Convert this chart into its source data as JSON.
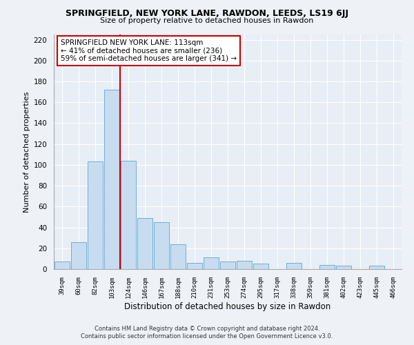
{
  "title": "SPRINGFIELD, NEW YORK LANE, RAWDON, LEEDS, LS19 6JJ",
  "subtitle": "Size of property relative to detached houses in Rawdon",
  "xlabel": "Distribution of detached houses by size in Rawdon",
  "ylabel": "Number of detached properties",
  "bar_labels": [
    "39sqm",
    "60sqm",
    "82sqm",
    "103sqm",
    "124sqm",
    "146sqm",
    "167sqm",
    "188sqm",
    "210sqm",
    "231sqm",
    "253sqm",
    "274sqm",
    "295sqm",
    "317sqm",
    "338sqm",
    "359sqm",
    "381sqm",
    "402sqm",
    "423sqm",
    "445sqm",
    "466sqm"
  ],
  "bar_values": [
    7,
    26,
    103,
    172,
    104,
    49,
    45,
    24,
    6,
    11,
    7,
    8,
    5,
    0,
    6,
    0,
    4,
    3,
    0,
    3,
    0
  ],
  "bar_color": "#c8dcf0",
  "bar_edge_color": "#6baed6",
  "vline_color": "#cc0000",
  "vline_x": 3.5,
  "ylim": [
    0,
    225
  ],
  "yticks": [
    0,
    20,
    40,
    60,
    80,
    100,
    120,
    140,
    160,
    180,
    200,
    220
  ],
  "annotation_title": "SPRINGFIELD NEW YORK LANE: 113sqm",
  "annotation_line1": "← 41% of detached houses are smaller (236)",
  "annotation_line2": "59% of semi-detached houses are larger (341) →",
  "footer_line1": "Contains HM Land Registry data © Crown copyright and database right 2024.",
  "footer_line2": "Contains public sector information licensed under the Open Government Licence v3.0.",
  "bg_color": "#eef2f7",
  "grid_color": "#ffffff",
  "plot_bg_color": "#e8eef5"
}
